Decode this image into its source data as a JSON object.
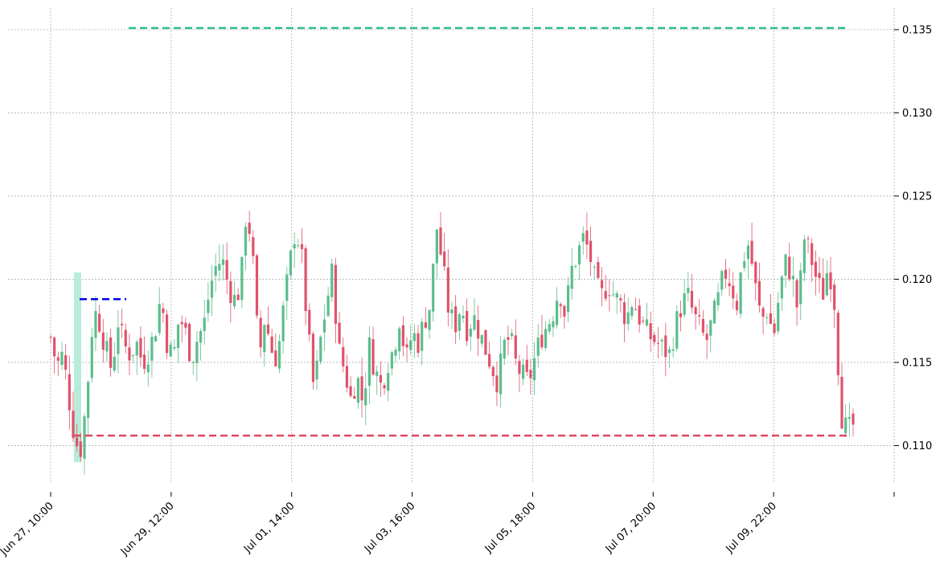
{
  "chart_data": {
    "type": "candlestick",
    "title": "",
    "xlabel": "",
    "ylabel": "",
    "ylim": [
      0.1078,
      0.1363
    ],
    "grid": true,
    "y_ticks": [
      "0.110",
      "0.115",
      "0.120",
      "0.125",
      "0.130",
      "0.135"
    ],
    "x_ticks": [
      "Jun 27, 10:00",
      "Jun 29, 12:00",
      "Jul 01, 14:00",
      "Jul 03, 16:00",
      "Jul 05, 18:00",
      "Jul 07, 20:00",
      "Jul 09, 22:00"
    ],
    "colors": {
      "up": "#5bbd8d",
      "down": "#e0526a",
      "band": "#b8ecd9",
      "resistance": "#2dbf8c",
      "support": "#e0465c",
      "entry": "#0000ee"
    },
    "price_path": [
      0.1165,
      0.1148,
      0.1155,
      0.1128,
      0.1102,
      0.1098,
      0.1135,
      0.1182,
      0.1174,
      0.1158,
      0.1145,
      0.1175,
      0.116,
      0.1155,
      0.1162,
      0.115,
      0.1157,
      0.1168,
      0.119,
      0.1162,
      0.1152,
      0.1178,
      0.1168,
      0.1152,
      0.1165,
      0.1172,
      0.1195,
      0.1208,
      0.1212,
      0.1196,
      0.1188,
      0.1195,
      0.1245,
      0.1212,
      0.1152,
      0.1178,
      0.1158,
      0.1152,
      0.1182,
      0.1208,
      0.1232,
      0.1212,
      0.1168,
      0.1132,
      0.1162,
      0.1185,
      0.1205,
      0.1158,
      0.1145,
      0.1128,
      0.1142,
      0.1125,
      0.116,
      0.1145,
      0.1135,
      0.115,
      0.1158,
      0.1178,
      0.115,
      0.1168,
      0.1162,
      0.1175,
      0.1185,
      0.1232,
      0.1208,
      0.118,
      0.1172,
      0.1185,
      0.117,
      0.1178,
      0.1168,
      0.1158,
      0.1148,
      0.1138,
      0.116,
      0.1165,
      0.1148,
      0.1142,
      0.1138,
      0.1152,
      0.1165,
      0.1172,
      0.118,
      0.1195,
      0.1178,
      0.1205,
      0.1215,
      0.1225,
      0.1215,
      0.1195,
      0.119,
      0.1198,
      0.119,
      0.1185,
      0.1176,
      0.1188,
      0.1178,
      0.117,
      0.1165,
      0.1162,
      0.1158,
      0.1155,
      0.1172,
      0.1185,
      0.119,
      0.1178,
      0.117,
      0.1162,
      0.1175,
      0.1188,
      0.1205,
      0.1198,
      0.1185,
      0.1212,
      0.1222,
      0.1196,
      0.1175,
      0.1182,
      0.1165,
      0.1193,
      0.121,
      0.1203,
      0.118,
      0.1225,
      0.1215,
      0.12,
      0.119,
      0.121,
      0.1185,
      0.112,
      0.1108,
      0.1112
    ],
    "support": 0.1106,
    "resistance": 0.1351,
    "entry": 0.1188,
    "band": [
      0.109,
      0.1204
    ]
  }
}
